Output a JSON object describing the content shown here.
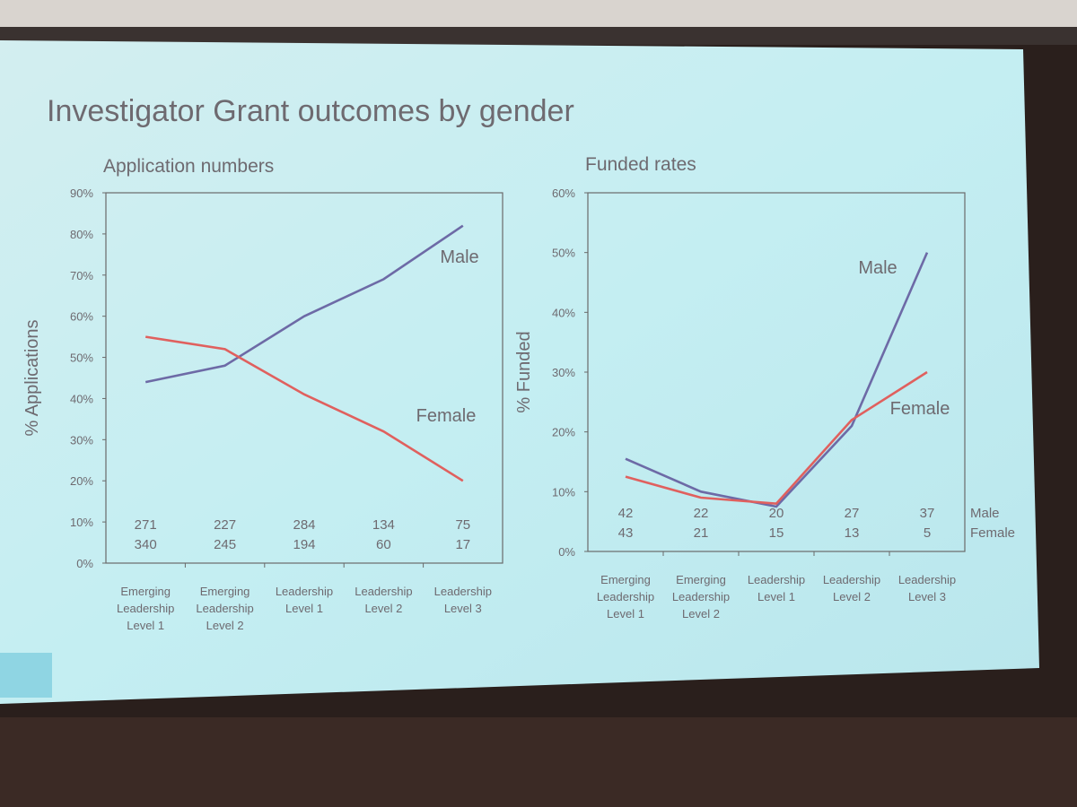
{
  "title": "Investigator Grant outcomes by gender",
  "chart_data": [
    {
      "type": "line",
      "title": "Application numbers",
      "ylabel": "% Applications",
      "categories": [
        "Emerging Leadership Level 1",
        "Emerging Leadership Level 2",
        "Leadership Level 1",
        "Leadership Level 2",
        "Leadership Level 3"
      ],
      "series": [
        {
          "name": "Male",
          "color": "#6d6aa6",
          "values": [
            44,
            48,
            60,
            69,
            82
          ]
        },
        {
          "name": "Female",
          "color": "#e0605e",
          "values": [
            55,
            52,
            41,
            32,
            20
          ]
        }
      ],
      "counts": [
        {
          "values": [
            271,
            227,
            284,
            134,
            75
          ]
        },
        {
          "values": [
            340,
            245,
            194,
            60,
            17
          ]
        }
      ],
      "ylim": [
        0,
        90
      ],
      "yticks": [
        {
          "value": 0,
          "label": "0%"
        },
        {
          "value": 10,
          "label": "10%"
        },
        {
          "value": 20,
          "label": "20%"
        },
        {
          "value": 30,
          "label": "30%"
        },
        {
          "value": 40,
          "label": "40%"
        },
        {
          "value": 50,
          "label": "50%"
        },
        {
          "value": 60,
          "label": "60%"
        },
        {
          "value": 70,
          "label": "70%"
        },
        {
          "value": 80,
          "label": "80%"
        },
        {
          "value": 90,
          "label": "90%"
        }
      ]
    },
    {
      "type": "line",
      "title": "Funded rates",
      "ylabel": "% Funded",
      "categories": [
        "Emerging Leadership Level 1",
        "Emerging Leadership Level 2",
        "Leadership Level 1",
        "Leadership Level 2",
        "Leadership Level 3"
      ],
      "series": [
        {
          "name": "Male",
          "color": "#6d6aa6",
          "values": [
            15.5,
            10,
            7.5,
            21,
            50
          ]
        },
        {
          "name": "Female",
          "color": "#e0605e",
          "values": [
            12.5,
            9,
            8,
            22,
            30
          ]
        }
      ],
      "counts": [
        {
          "name": "Male",
          "values": [
            42,
            22,
            20,
            27,
            37
          ]
        },
        {
          "name": "Female",
          "values": [
            43,
            21,
            15,
            13,
            5
          ]
        }
      ],
      "ylim": [
        0,
        60
      ],
      "yticks": [
        {
          "value": 0,
          "label": "0%"
        },
        {
          "value": 10,
          "label": "10%"
        },
        {
          "value": 20,
          "label": "20%"
        },
        {
          "value": 30,
          "label": "30%"
        },
        {
          "value": 40,
          "label": "40%"
        },
        {
          "value": 50,
          "label": "50%"
        },
        {
          "value": 60,
          "label": "60%"
        }
      ]
    }
  ]
}
